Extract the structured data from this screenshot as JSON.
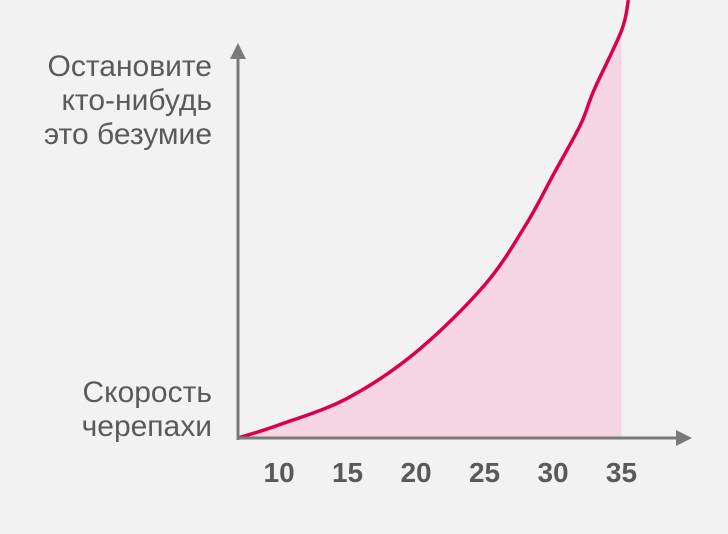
{
  "chart_data": {
    "type": "line",
    "xlim": [
      7,
      40
    ],
    "xticks": [
      10,
      15,
      20,
      25,
      30,
      35
    ],
    "ylim": [
      0,
      100
    ],
    "yticks": [
      {
        "value": 6.4,
        "label": "Скорость\nчерепахи"
      },
      {
        "value": 77,
        "label": "Остановите\nкто-нибудь\nэто безумие"
      }
    ],
    "series": [
      {
        "color": "#d9004f",
        "x": [
          7,
          10,
          15,
          20,
          25,
          28,
          30,
          32,
          33,
          35,
          35.5
        ],
        "values": [
          0,
          3,
          9.1,
          19.6,
          34.9,
          48.6,
          60,
          71.5,
          79.5,
          93,
          100
        ]
      }
    ],
    "area": {
      "color": "#f6d6e2",
      "x": [
        7,
        10,
        15,
        20,
        25,
        28,
        30,
        32,
        33,
        35
      ],
      "values": [
        0,
        3,
        9.1,
        19.6,
        34.9,
        48.6,
        60,
        71.5,
        79.5,
        93
      ]
    }
  }
}
